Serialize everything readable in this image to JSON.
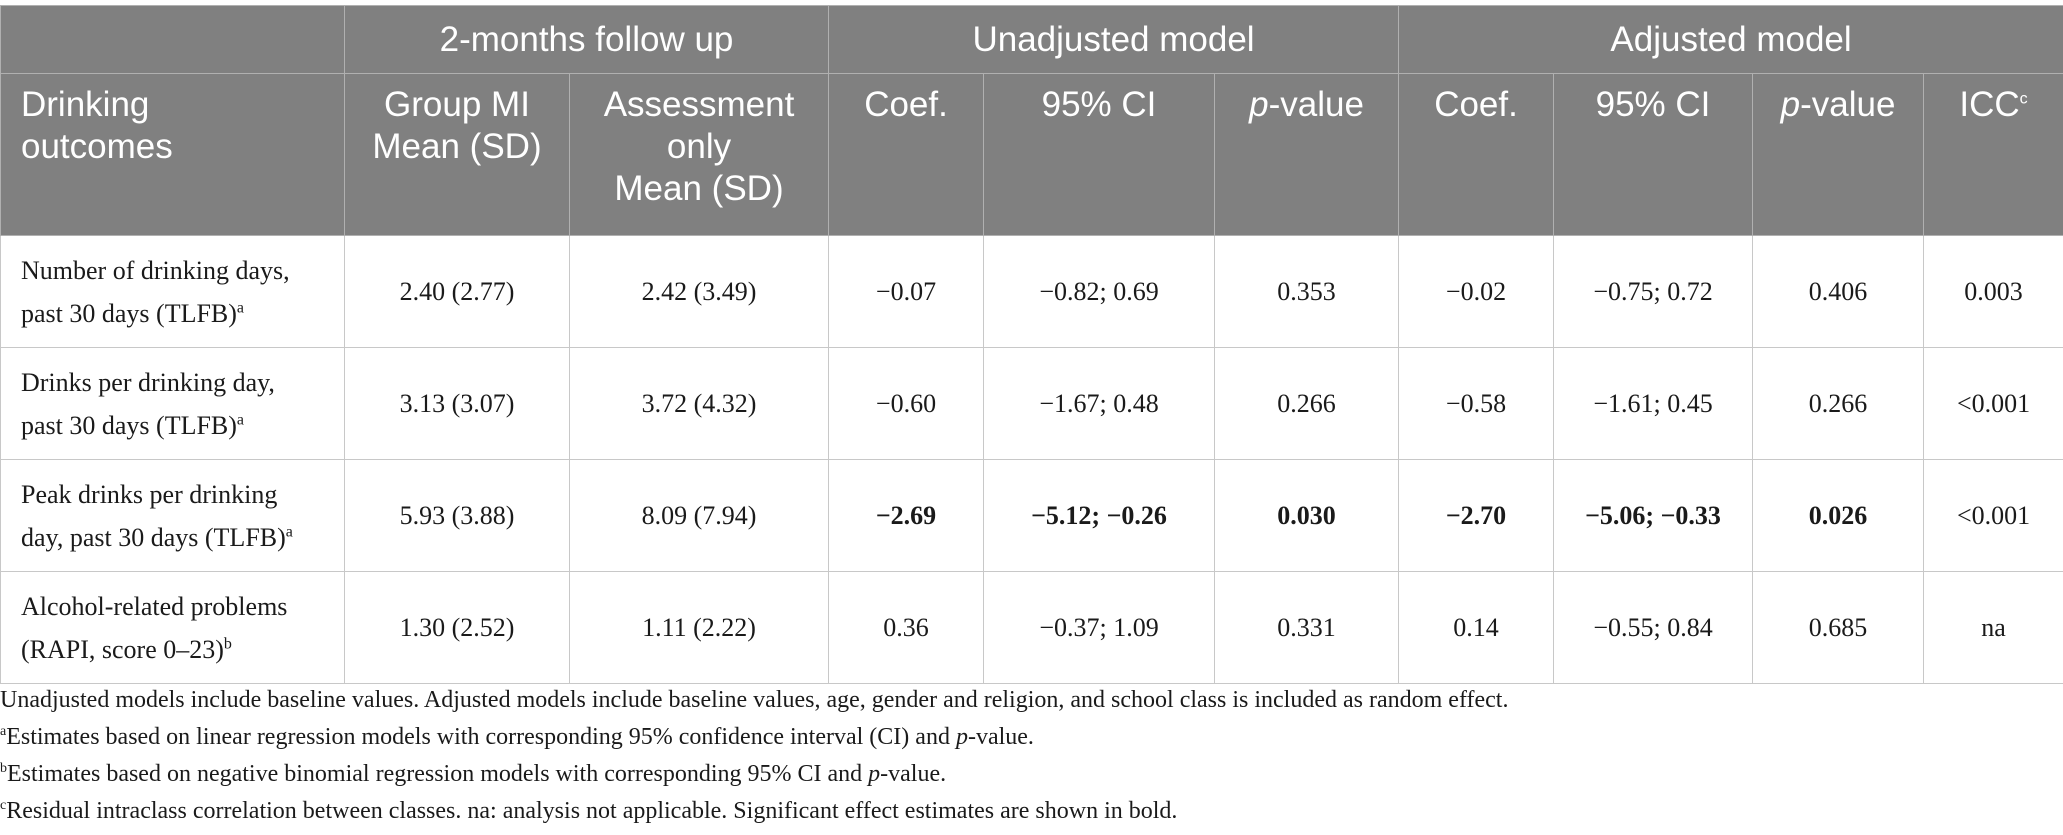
{
  "header": {
    "group_followup": "2-months follow up",
    "group_unadjusted": "Unadjusted model",
    "group_adjusted": "Adjusted model",
    "col_outcome_l1": "Drinking",
    "col_outcome_l2": "outcomes",
    "col_mi_l1": "Group MI",
    "col_mi_l2": "Mean (SD)",
    "col_ao_l1": "Assessment",
    "col_ao_l2": "only",
    "col_ao_l3": "Mean (SD)",
    "coef": "Coef.",
    "ci": "95% CI",
    "p_italic": "p",
    "p_rest": "-value",
    "icc": "ICC",
    "icc_sup": "c"
  },
  "rows": [
    {
      "label_l1": "Number of drinking days,",
      "label_l2": "past 30 days (TLFB)",
      "sup": "a",
      "mi": "2.40 (2.77)",
      "ao": "2.42 (3.49)",
      "u_coef": "−0.07",
      "u_ci": "−0.82; 0.69",
      "u_p": "0.353",
      "a_coef": "−0.02",
      "a_ci": "−0.75; 0.72",
      "a_p": "0.406",
      "icc": "0.003"
    },
    {
      "label_l1": "Drinks per drinking day,",
      "label_l2": "past 30 days (TLFB)",
      "sup": "a",
      "mi": "3.13 (3.07)",
      "ao": "3.72 (4.32)",
      "u_coef": "−0.60",
      "u_ci": "−1.67; 0.48",
      "u_p": "0.266",
      "a_coef": "−0.58",
      "a_ci": "−1.61; 0.45",
      "a_p": "0.266",
      "icc": "<0.001"
    },
    {
      "label_l1": "Peak drinks per drinking",
      "label_l2": "day, past 30 days (TLFB)",
      "sup": "a",
      "mi": "5.93 (3.88)",
      "ao": "8.09 (7.94)",
      "u_coef": "−2.69",
      "u_ci": "−5.12; −0.26",
      "u_p": "0.030",
      "a_coef": "−2.70",
      "a_ci": "−5.06; −0.33",
      "a_p": "0.026",
      "icc": "<0.001"
    },
    {
      "label_l1": "Alcohol-related problems",
      "label_l2": "(RAPI, score 0–23)",
      "sup": "b",
      "mi": "1.30 (2.52)",
      "ao": "1.11 (2.22)",
      "u_coef": "0.36",
      "u_ci": "−0.37; 1.09",
      "u_p": "0.331",
      "a_coef": "0.14",
      "a_ci": "−0.55; 0.84",
      "a_p": "0.685",
      "icc": "na"
    }
  ],
  "notes": {
    "n0": "Unadjusted models include baseline values. Adjusted models include baseline values, age, gender and religion, and school class is included as random effect.",
    "n1_sup": "a",
    "n1_a": "Estimates based on linear regression models with corresponding 95% confidence interval (CI) and ",
    "n1_p": "p",
    "n1_b": "-value.",
    "n2_sup": "b",
    "n2_a": "Estimates based on negative binomial regression models with corresponding 95% CI and ",
    "n2_p": "p",
    "n2_b": "-value.",
    "n3_sup": "c",
    "n3": "Residual intraclass correlation between classes. na: analysis not applicable. Significant effect estimates are shown in bold."
  }
}
